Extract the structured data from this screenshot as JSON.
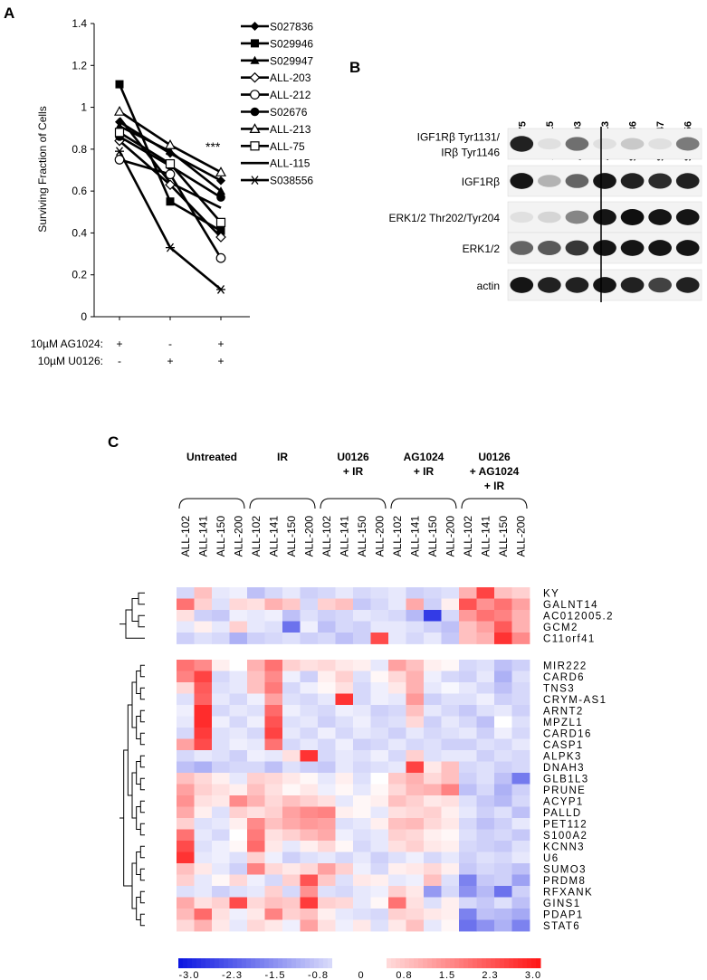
{
  "panels": {
    "a": "A",
    "b": "B",
    "c": "C"
  },
  "chart_data": [
    {
      "type": "line",
      "panel": "A",
      "title": "",
      "xlabel": "",
      "ylabel": "Surviving Fraction of Cells",
      "ylim": [
        0,
        1.4
      ],
      "yticks": [
        "0",
        "0.2",
        "0.4",
        "0.6",
        "0.8",
        "1",
        "1.2",
        "1.4"
      ],
      "treatments": [
        {
          "label": "10µM AG1024:",
          "values": [
            "+",
            "-",
            "+"
          ]
        },
        {
          "label": "10µM U0126:",
          "values": [
            "-",
            "+",
            "+"
          ]
        }
      ],
      "significance": "***",
      "legend_position": "top-right",
      "series": [
        {
          "name": "S027836",
          "marker": "diamond-filled",
          "values": [
            0.93,
            0.78,
            0.65
          ]
        },
        {
          "name": "S029946",
          "marker": "square-filled",
          "values": [
            1.11,
            0.55,
            0.41
          ]
        },
        {
          "name": "S029947",
          "marker": "triangle-filled",
          "values": [
            0.91,
            0.79,
            0.6
          ]
        },
        {
          "name": "ALL-203",
          "marker": "diamond-open",
          "values": [
            0.84,
            0.63,
            0.38
          ]
        },
        {
          "name": "ALL-212",
          "marker": "circle-open",
          "values": [
            0.75,
            0.68,
            0.28
          ]
        },
        {
          "name": "S02676",
          "marker": "circle-filled",
          "values": [
            0.86,
            0.72,
            0.57
          ]
        },
        {
          "name": "ALL-213",
          "marker": "triangle-open",
          "values": [
            0.98,
            0.82,
            0.69
          ]
        },
        {
          "name": "ALL-75",
          "marker": "square-open",
          "values": [
            0.88,
            0.73,
            0.45
          ]
        },
        {
          "name": "ALL-115",
          "marker": "none",
          "values": [
            0.95,
            0.64,
            0.52
          ]
        },
        {
          "name": "S038556",
          "marker": "asterisk",
          "values": [
            0.79,
            0.33,
            0.13
          ]
        }
      ]
    },
    {
      "type": "heatmap",
      "panel": "C",
      "groups": [
        "Untreated",
        "IR",
        "U0126\n+ IR",
        "AG1024\n+ IR",
        "U0126\n+ AG1024\n+ IR"
      ],
      "samples": [
        "ALL-102",
        "ALL-141",
        "ALL-150",
        "ALL-200"
      ],
      "rows_cluster1": [
        "KY",
        "GALNT14",
        "AC012005.2",
        "GCM2",
        "C11orf41"
      ],
      "rows_cluster2": [
        "MIR222",
        "CARD6",
        "TNS3",
        "CRYM-AS1",
        "ARNT2",
        "MPZL1",
        "CARD16",
        "CASP1",
        "ALPK3",
        "DNAH3",
        "GLB1L3",
        "PRUNE",
        "ACYP1",
        "PALLD",
        "PET112",
        "S100A2",
        "KCNN3",
        "U6",
        "SUMO3",
        "PRDM8",
        "RFXANK",
        "GINS1",
        "PDAP1",
        "STAT6"
      ],
      "scale_labels": [
        "-3.0",
        "-2.3",
        "-1.5",
        "-0.8",
        "0",
        "0.8",
        "1.5",
        "2.3",
        "3.0"
      ],
      "values_cluster1": [
        [
          -0.5,
          0.8,
          -0.3,
          -0.2,
          -0.8,
          -0.5,
          -0.3,
          -0.6,
          -0.5,
          -0.3,
          -0.5,
          -0.4,
          -0.3,
          -0.6,
          -0.5,
          -0.4,
          1.0,
          2.4,
          0.8,
          0.6
        ],
        [
          1.8,
          0.6,
          -0.4,
          0.5,
          0.4,
          1.0,
          0.7,
          -0.5,
          0.6,
          0.8,
          -0.7,
          -0.5,
          -0.3,
          1.1,
          -0.6,
          0.2,
          2.2,
          1.4,
          1.8,
          1.2
        ],
        [
          0.4,
          -0.6,
          -0.7,
          -0.2,
          -0.3,
          -0.2,
          -0.8,
          -0.4,
          -0.6,
          -0.5,
          -0.3,
          -0.4,
          -0.5,
          -0.9,
          -2.5,
          -0.5,
          1.3,
          1.8,
          1.6,
          1.0
        ],
        [
          -0.3,
          0.2,
          -0.3,
          0.6,
          -0.3,
          -0.4,
          -1.8,
          -0.2,
          -0.8,
          -0.5,
          -0.6,
          -0.3,
          -0.3,
          -0.4,
          -0.6,
          -0.8,
          0.8,
          1.2,
          2.1,
          1.0
        ],
        [
          -0.6,
          -0.4,
          -0.5,
          -1.0,
          -0.6,
          -0.5,
          -0.4,
          -0.6,
          -0.5,
          -0.8,
          -0.6,
          2.3,
          -0.3,
          -0.5,
          -0.3,
          -0.7,
          0.8,
          1.0,
          2.6,
          1.5
        ]
      ],
      "values_cluster2": [
        [
          1.8,
          1.5,
          0.2,
          0.0,
          1.0,
          1.8,
          0.6,
          0.4,
          0.5,
          0.3,
          0.2,
          -0.3,
          1.2,
          0.8,
          0.2,
          0.1,
          -0.5,
          -0.4,
          -0.8,
          -0.6
        ],
        [
          1.6,
          2.4,
          -0.5,
          -0.3,
          0.8,
          1.5,
          -0.2,
          -0.6,
          0.2,
          0.6,
          -0.4,
          0.1,
          0.5,
          1.0,
          -0.2,
          -0.5,
          -0.6,
          -0.3,
          -1.0,
          -0.4
        ],
        [
          0.5,
          2.1,
          -0.4,
          -0.3,
          0.8,
          1.7,
          -0.5,
          -0.2,
          0.1,
          0.4,
          -0.5,
          -0.2,
          0.3,
          1.0,
          -0.3,
          -0.1,
          -0.3,
          -0.5,
          -0.8,
          -0.5
        ],
        [
          -0.4,
          2.0,
          -0.3,
          -0.5,
          -0.2,
          1.2,
          -0.4,
          -0.5,
          -0.3,
          2.6,
          -0.5,
          -0.2,
          -0.3,
          1.3,
          -0.6,
          -0.4,
          -0.4,
          -0.2,
          -0.6,
          -0.5
        ],
        [
          -0.2,
          2.7,
          -0.5,
          -0.3,
          -0.4,
          1.9,
          -0.2,
          -0.4,
          -0.5,
          -0.2,
          -0.3,
          -0.6,
          -0.5,
          0.8,
          -0.3,
          -0.5,
          -0.7,
          -0.4,
          -0.3,
          -0.6
        ],
        [
          -0.3,
          2.7,
          -0.2,
          -0.5,
          -0.2,
          2.2,
          -0.4,
          -0.3,
          -0.6,
          -0.4,
          -0.2,
          -0.5,
          -0.4,
          0.5,
          -0.6,
          -0.3,
          -0.5,
          -0.8,
          0.0,
          -0.4
        ],
        [
          -0.5,
          2.5,
          -0.4,
          -0.3,
          -0.5,
          2.4,
          -0.3,
          -0.5,
          -0.2,
          -0.5,
          -0.3,
          -0.4,
          -0.6,
          -0.3,
          -0.5,
          -0.4,
          -0.3,
          -0.6,
          -0.2,
          -0.5
        ],
        [
          1.2,
          2.3,
          -0.4,
          -0.2,
          -0.3,
          1.8,
          -0.5,
          -0.3,
          -0.5,
          -0.2,
          -0.6,
          -0.5,
          -0.3,
          -0.5,
          -0.4,
          -0.6,
          -0.6,
          -0.4,
          -0.5,
          -0.3
        ],
        [
          -0.5,
          -0.3,
          -0.4,
          -0.6,
          -0.2,
          -0.3,
          0.4,
          2.6,
          -0.5,
          -0.3,
          -0.4,
          -0.2,
          -0.5,
          0.6,
          -0.4,
          -0.3,
          -0.3,
          -0.6,
          -0.4,
          -0.5
        ],
        [
          -0.8,
          -1.0,
          -0.6,
          -0.5,
          -0.5,
          -0.8,
          -0.4,
          -0.6,
          -0.7,
          -0.3,
          -0.5,
          -0.4,
          -0.3,
          2.4,
          0.3,
          0.8,
          -0.5,
          -0.4,
          -0.6,
          -0.5
        ],
        [
          0.8,
          0.5,
          0.2,
          -0.3,
          0.6,
          0.5,
          0.3,
          0.1,
          -0.3,
          0.2,
          -0.4,
          0.0,
          0.7,
          1.0,
          0.5,
          0.8,
          -0.6,
          -0.4,
          -0.8,
          -1.7
        ],
        [
          1.2,
          0.6,
          0.4,
          0.2,
          0.8,
          0.4,
          0.1,
          0.3,
          -0.2,
          0.1,
          -0.3,
          0.1,
          0.5,
          0.9,
          1.0,
          1.6,
          -0.8,
          -0.5,
          -1.0,
          -0.6
        ],
        [
          1.4,
          0.4,
          0.3,
          1.5,
          1.0,
          0.5,
          0.8,
          0.6,
          0.4,
          -0.3,
          0.1,
          0.2,
          0.8,
          0.6,
          0.3,
          0.4,
          -0.4,
          -0.7,
          -0.9,
          -0.5
        ],
        [
          1.1,
          0.2,
          -0.4,
          0.6,
          0.4,
          0.6,
          1.2,
          1.5,
          1.6,
          0.2,
          0.1,
          -0.3,
          0.4,
          0.5,
          0.6,
          0.2,
          -0.3,
          -0.6,
          -0.4,
          -0.8
        ],
        [
          0.6,
          -0.4,
          -0.3,
          0.2,
          1.5,
          0.8,
          1.1,
          1.3,
          1.2,
          -0.4,
          -0.3,
          0.2,
          0.8,
          0.9,
          0.5,
          0.3,
          -0.5,
          -0.8,
          -0.6,
          -0.3
        ],
        [
          1.8,
          -0.3,
          -0.5,
          0.0,
          1.7,
          0.4,
          0.6,
          0.9,
          1.1,
          -0.2,
          -0.4,
          -0.3,
          0.6,
          0.5,
          0.2,
          0.1,
          -0.4,
          -0.6,
          -0.5,
          -0.7
        ],
        [
          2.3,
          -0.4,
          -0.2,
          0.1,
          1.9,
          0.3,
          -0.3,
          0.2,
          0.5,
          0.1,
          -0.5,
          -0.3,
          0.4,
          0.6,
          0.3,
          0.2,
          -0.5,
          -0.6,
          -0.7,
          -0.4
        ],
        [
          2.6,
          -0.3,
          -0.2,
          -0.4,
          0.6,
          -0.2,
          -0.6,
          -0.4,
          -0.3,
          -0.5,
          -0.3,
          -0.6,
          -0.4,
          -0.2,
          -0.5,
          -0.3,
          -0.6,
          -0.4,
          -0.5,
          -0.3
        ],
        [
          0.8,
          0.3,
          -0.3,
          -0.6,
          1.6,
          0.5,
          0.3,
          0.5,
          1.2,
          0.6,
          -0.2,
          -0.5,
          0.2,
          0.3,
          0.5,
          0.2,
          -0.7,
          -0.5,
          -0.6,
          -0.8
        ],
        [
          0.6,
          -0.3,
          0.1,
          0.5,
          -0.2,
          -0.5,
          0.6,
          2.2,
          0.7,
          -0.4,
          0.3,
          0.2,
          -0.3,
          -0.2,
          0.8,
          -0.4,
          -1.6,
          -0.7,
          -0.6,
          -1.2
        ],
        [
          -0.4,
          -0.3,
          -0.6,
          -0.4,
          -0.3,
          0.6,
          -0.5,
          1.4,
          -0.4,
          -0.5,
          -0.3,
          -0.2,
          0.6,
          0.3,
          -1.3,
          -0.5,
          -1.4,
          -0.9,
          -1.8,
          -0.6
        ],
        [
          1.1,
          0.4,
          0.6,
          2.3,
          0.5,
          0.8,
          0.7,
          2.5,
          0.6,
          0.5,
          -0.3,
          0.1,
          1.8,
          0.4,
          -0.4,
          0.2,
          -0.5,
          -0.7,
          -0.4,
          -0.8
        ],
        [
          0.9,
          1.9,
          0.4,
          -0.2,
          0.3,
          1.6,
          0.6,
          0.8,
          0.2,
          -0.3,
          -0.4,
          -0.5,
          0.6,
          0.5,
          0.3,
          0.2,
          -1.6,
          -0.8,
          -0.9,
          -1.1
        ],
        [
          0.5,
          1.0,
          0.3,
          -0.3,
          0.5,
          0.3,
          -0.2,
          1.2,
          0.4,
          -0.2,
          0.3,
          -0.4,
          0.3,
          0.8,
          -0.3,
          0.1,
          -1.8,
          -1.4,
          -1.0,
          -1.6
        ]
      ]
    }
  ],
  "blot": {
    "lanes": [
      "ALL-75",
      "ALL-115",
      "ALL-203",
      "ALL-213",
      "S027836",
      "S029947",
      "S038556"
    ],
    "rows": [
      {
        "label": "IGF1Rβ Tyr1131/\nIRβ Tyr1146",
        "intensity": [
          0.9,
          0.05,
          0.55,
          0.05,
          0.15,
          0.05,
          0.5
        ]
      },
      {
        "label": "IGF1Rβ",
        "intensity": [
          0.95,
          0.25,
          0.6,
          0.95,
          0.9,
          0.85,
          0.9
        ]
      },
      {
        "label": "ERK1/2 Thr202/Tyr204",
        "intensity": [
          0.05,
          0.1,
          0.45,
          0.95,
          0.98,
          0.95,
          0.95
        ]
      },
      {
        "label": "ERK1/2",
        "intensity": [
          0.6,
          0.65,
          0.8,
          0.95,
          0.95,
          0.95,
          0.95
        ]
      },
      {
        "label": "actin",
        "intensity": [
          0.95,
          0.9,
          0.9,
          0.95,
          0.9,
          0.75,
          0.9
        ]
      }
    ]
  }
}
